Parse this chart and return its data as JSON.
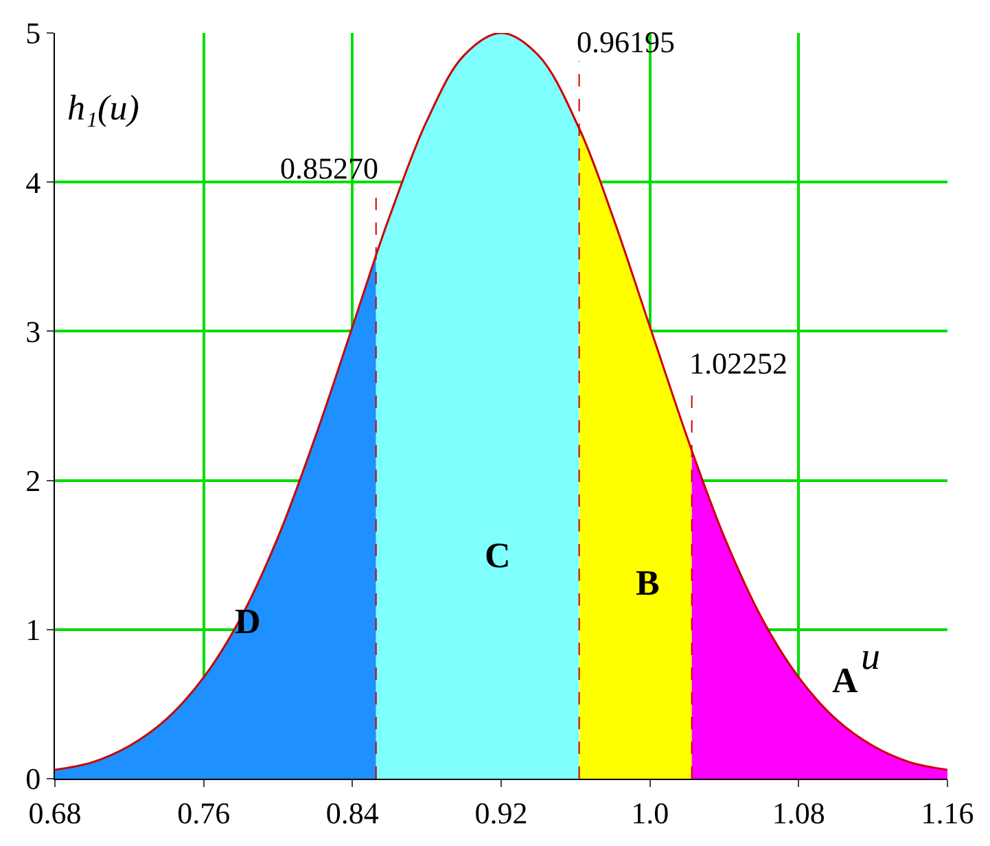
{
  "chart_data": {
    "type": "area",
    "ylabel": "h₁(u)",
    "xlabel": "u",
    "xlim": [
      0.68,
      1.16
    ],
    "ylim": [
      0,
      5
    ],
    "xticks": [
      0.68,
      0.76,
      0.84,
      0.92,
      {
        "value": 1.0,
        "label": "1.0"
      },
      1.08,
      1.16
    ],
    "yticks": [
      0,
      1,
      2,
      3,
      4,
      5
    ],
    "grid": true,
    "series": [
      {
        "name": "D",
        "color": "#1e90ff",
        "x": [
          0.68,
          0.7,
          0.72,
          0.74,
          0.76,
          0.78,
          0.8,
          0.82,
          0.84,
          0.8527
        ],
        "values": [
          0.06,
          0.11,
          0.22,
          0.4,
          0.68,
          1.08,
          1.62,
          2.29,
          3.03,
          3.51
        ]
      },
      {
        "name": "C",
        "color": "#80ffff",
        "x": [
          0.8527,
          0.86,
          0.88,
          0.9,
          0.92,
          0.94,
          0.96195
        ],
        "values": [
          3.51,
          3.77,
          4.41,
          4.85,
          5.0,
          4.85,
          4.36
        ]
      },
      {
        "name": "B",
        "color": "#ffff00",
        "x": [
          0.96195,
          0.98,
          1.0,
          1.02252
        ],
        "values": [
          4.36,
          3.77,
          3.03,
          2.2
        ]
      },
      {
        "name": "A",
        "color": "#ff00ff",
        "x": [
          1.02252,
          1.04,
          1.06,
          1.08,
          1.1,
          1.12,
          1.14,
          1.16
        ],
        "values": [
          2.2,
          1.62,
          1.08,
          0.68,
          0.4,
          0.22,
          0.11,
          0.06
        ]
      },
      {
        "type": "line",
        "color": "#cc0000",
        "x": [
          0.68,
          0.7,
          0.72,
          0.74,
          0.76,
          0.78,
          0.8,
          0.82,
          0.84,
          0.8527,
          0.86,
          0.88,
          0.9,
          0.92,
          0.94,
          0.96195,
          0.98,
          1.0,
          1.02252,
          1.04,
          1.06,
          1.08,
          1.1,
          1.12,
          1.14,
          1.16
        ],
        "values": [
          0.06,
          0.11,
          0.22,
          0.4,
          0.68,
          1.08,
          1.62,
          2.29,
          3.03,
          3.51,
          3.77,
          4.41,
          4.85,
          5.0,
          4.85,
          4.36,
          3.77,
          3.03,
          2.2,
          1.62,
          1.08,
          0.68,
          0.4,
          0.22,
          0.11,
          0.06
        ]
      }
    ],
    "ref_lines": [
      {
        "axis": "x",
        "value": 0.8527,
        "label": "0.85270",
        "color": "#cc0000",
        "line_style": "dashed"
      },
      {
        "axis": "x",
        "value": 0.96195,
        "label": "0.96195",
        "color": "#cc0000",
        "line_style": "dashed"
      },
      {
        "axis": "x",
        "value": 1.02252,
        "label": "1.02252",
        "color": "#cc0000",
        "line_style": "dashed"
      }
    ]
  }
}
